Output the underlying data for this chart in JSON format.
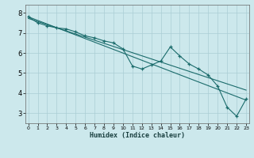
{
  "title": "",
  "xlabel": "Humidex (Indice chaleur)",
  "ylabel": "",
  "background_color": "#cce8ec",
  "grid_color": "#aacdd4",
  "line_color": "#1a6b6b",
  "x_ticks": [
    0,
    1,
    2,
    3,
    4,
    5,
    6,
    7,
    8,
    9,
    10,
    11,
    12,
    13,
    14,
    15,
    16,
    17,
    18,
    19,
    20,
    21,
    22,
    23
  ],
  "y_ticks": [
    3,
    4,
    5,
    6,
    7,
    8
  ],
  "xlim": [
    -0.3,
    23.3
  ],
  "ylim": [
    2.5,
    8.4
  ],
  "series1": {
    "x": [
      0,
      1,
      2,
      3,
      4,
      5,
      6,
      7,
      8,
      9,
      10,
      11,
      12,
      13,
      14,
      15,
      16,
      17,
      18,
      19,
      20,
      21,
      22,
      23
    ],
    "y": [
      7.8,
      7.5,
      7.35,
      7.25,
      7.2,
      7.05,
      6.85,
      6.75,
      6.6,
      6.5,
      6.2,
      5.35,
      5.2,
      5.4,
      5.6,
      6.3,
      5.85,
      5.45,
      5.2,
      4.9,
      4.35,
      3.3,
      2.85,
      3.7
    ]
  },
  "series2": {
    "x": [
      0,
      23
    ],
    "y": [
      7.8,
      3.65
    ]
  },
  "series3": {
    "x": [
      0,
      23
    ],
    "y": [
      7.72,
      4.15
    ]
  }
}
